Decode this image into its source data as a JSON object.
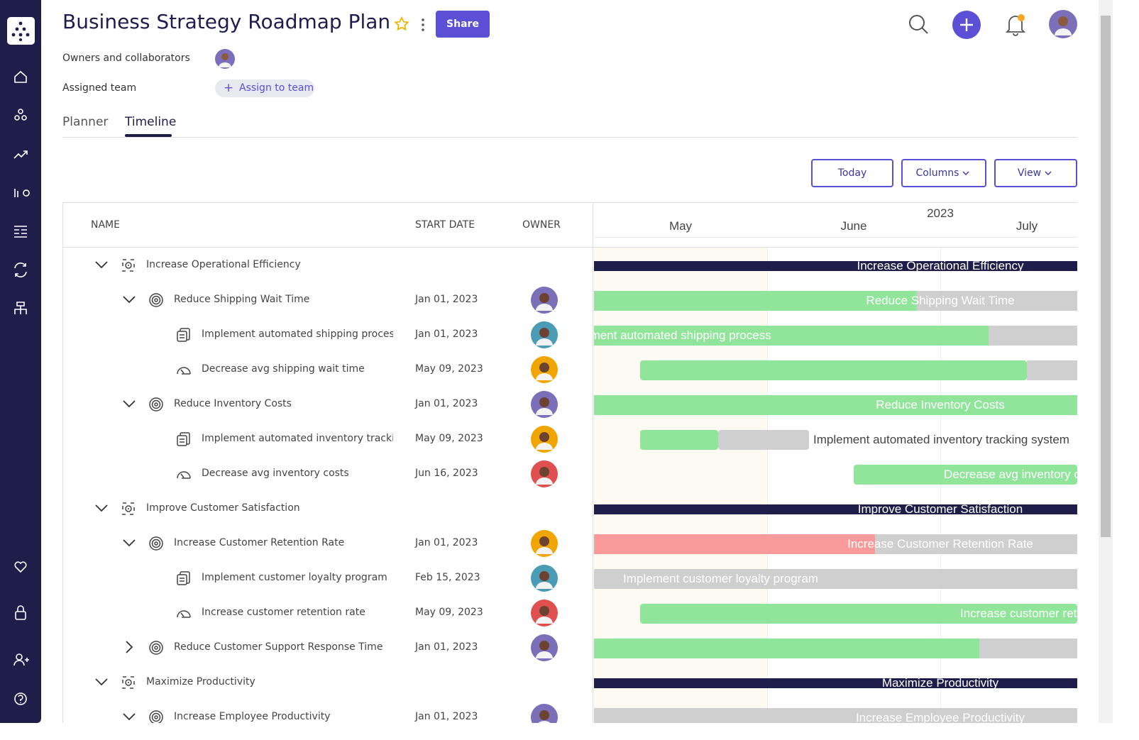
{
  "header": {
    "title": "Business Strategy Roadmap Plan",
    "share": "Share",
    "owners_label": "Owners and collaborators",
    "team_label": "Assigned team",
    "assign": "Assign to team"
  },
  "tabs": [
    "Planner",
    "Timeline"
  ],
  "buttons": [
    "Today",
    "Columns",
    "View"
  ],
  "columns": [
    "NAME",
    "START DATE",
    "OWNER"
  ],
  "timeline": {
    "year": "2023",
    "months": [
      "May",
      "June",
      "July"
    ]
  },
  "rows": [
    {
      "name": "Increase Operational Efficiency",
      "bar_label": "Increase Operational Efficiency"
    },
    {
      "name": "Reduce Shipping Wait Time",
      "start": "Jan 01, 2023",
      "bar_label": "Reduce Shipping Wait Time"
    },
    {
      "name": "Implement automated shipping process",
      "start": "Jan 01, 2023",
      "bar_label": "Implement automated shipping process"
    },
    {
      "name": "Decrease avg shipping wait time",
      "start": "May 09, 2023"
    },
    {
      "name": "Reduce Inventory Costs",
      "start": "Jan 01, 2023",
      "bar_label": "Reduce Inventory Costs"
    },
    {
      "name": "Implement automated inventory trackin...",
      "start": "May 09, 2023",
      "bar_label": "Implement automated inventory tracking system"
    },
    {
      "name": "Decrease avg inventory costs",
      "start": "Jun 16, 2023",
      "bar_label": "Decrease avg inventory costs"
    },
    {
      "name": "Improve Customer Satisfaction",
      "bar_label": "Improve Customer Satisfaction"
    },
    {
      "name": "Increase Customer Retention Rate",
      "start": "Jan 01, 2023",
      "bar_label": "Increase Customer Retention Rate"
    },
    {
      "name": "Implement customer loyalty program",
      "start": "Feb 15, 2023",
      "bar_label": "Implement customer loyalty program"
    },
    {
      "name": "Increase customer retention rate",
      "start": "May 09, 2023",
      "bar_label": "Increase customer retention rate"
    },
    {
      "name": "Reduce Customer Support Response Time",
      "start": "Jan 01, 2023"
    },
    {
      "name": "Maximize Productivity",
      "bar_label": "Maximize Productivity"
    },
    {
      "name": "Increase Employee Productivity",
      "start": "Jan 01, 2023",
      "bar_label": "Increase Employee Productivity"
    }
  ]
}
